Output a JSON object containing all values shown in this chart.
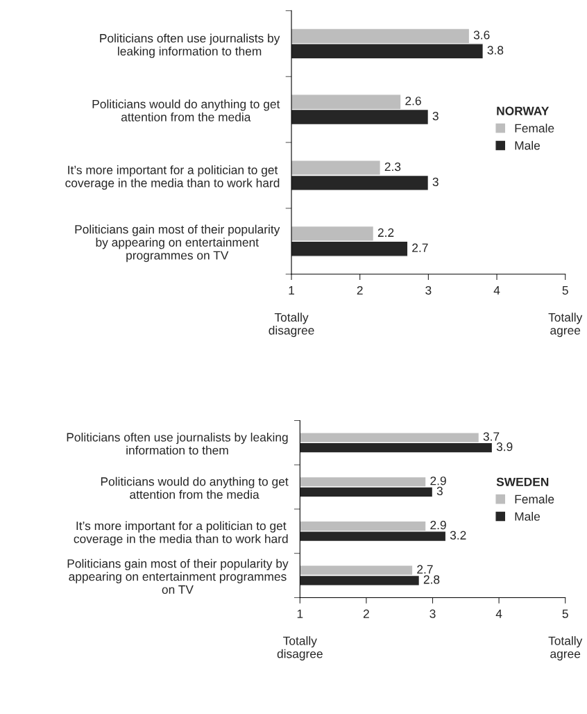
{
  "chart_data": [
    {
      "type": "bar",
      "orientation": "horizontal",
      "categories": [
        "Politicians often use journalists by\nleaking information to them",
        "Politicians would do anything to get\nattention from the media",
        "It’s more important for a politician to get\ncoverage in the media than to work hard",
        "Politicians gain most of their popularity\nby appearing on entertainment\nprogrammes on TV"
      ],
      "series": [
        {
          "name": "Female",
          "color": "#bdbdbd",
          "values": [
            3.6,
            2.6,
            2.3,
            2.2
          ]
        },
        {
          "name": "Male",
          "color": "#262626",
          "values": [
            3.8,
            3,
            3,
            2.7
          ]
        }
      ],
      "xlim": [
        1,
        5
      ],
      "xticks": [
        1,
        2,
        3,
        4,
        5
      ],
      "data_labels": true,
      "legend": "right",
      "legend_title": "NORWAY",
      "grid": false,
      "annotations": [
        "Totally\ndisagree",
        "Totally\nagree"
      ]
    },
    {
      "type": "bar",
      "orientation": "horizontal",
      "categories": [
        "Politicians often use journalists by leaking\ninformation to them",
        "Politicians would do anything to get\nattention from the media",
        "It’s more important for a politician to get\ncoverage in the media than to work hard",
        "Politicians gain most of their popularity by\nappearing on entertainment programmes\non TV"
      ],
      "series": [
        {
          "name": "Female",
          "color": "#bdbdbd",
          "values": [
            3.7,
            2.9,
            2.9,
            2.7
          ]
        },
        {
          "name": "Male",
          "color": "#262626",
          "values": [
            3.9,
            3,
            3.2,
            2.8
          ]
        }
      ],
      "xlim": [
        1,
        5
      ],
      "xticks": [
        1,
        2,
        3,
        4,
        5
      ],
      "data_labels": true,
      "legend": "right",
      "legend_title": "SWEDEN",
      "grid": false,
      "annotations": [
        "Totally\ndisagree",
        "Totally\nagree"
      ]
    }
  ]
}
